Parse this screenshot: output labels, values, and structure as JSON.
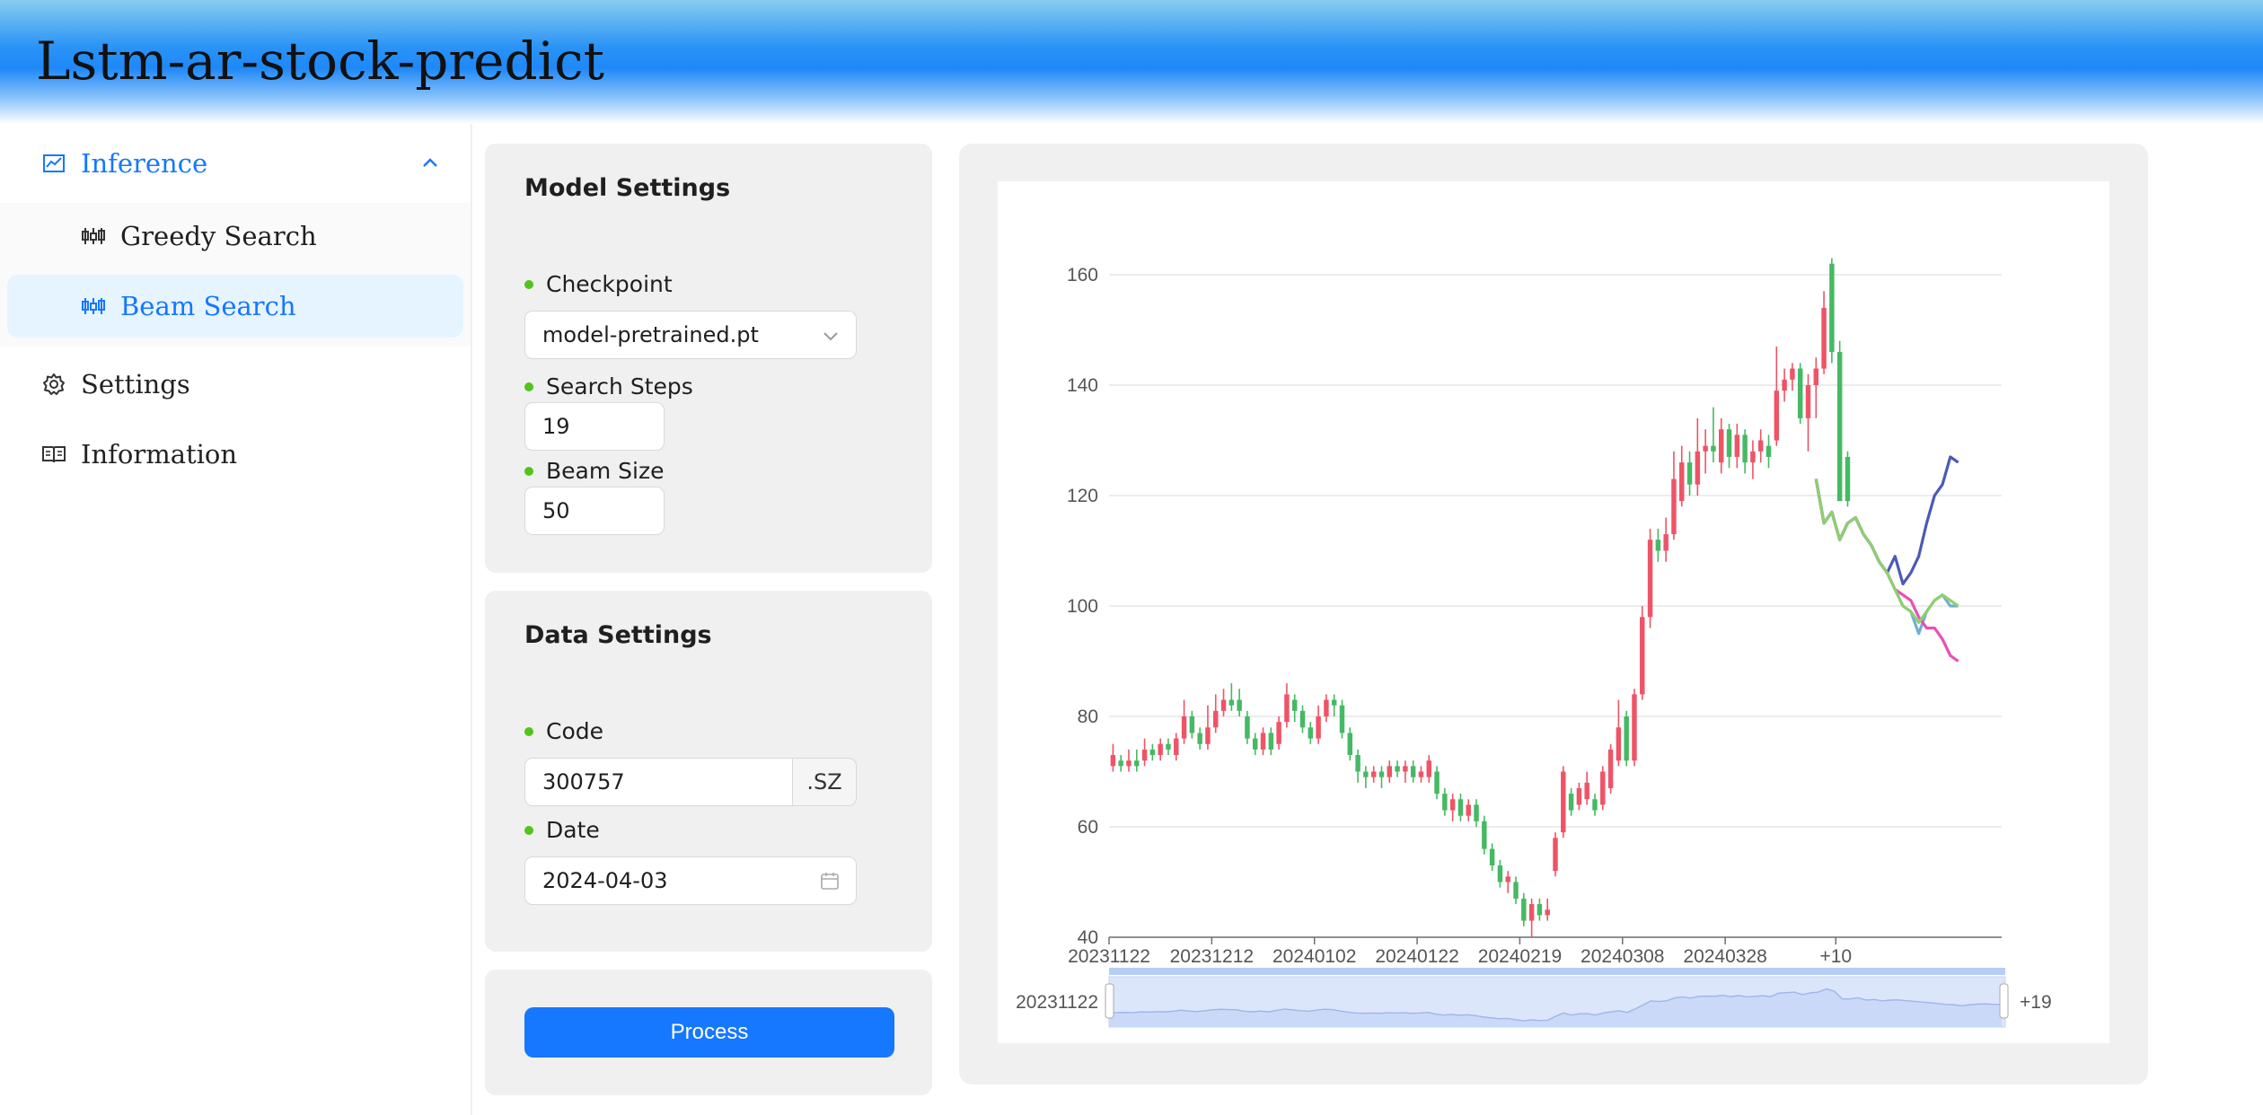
{
  "app": {
    "title": "Lstm-ar-stock-predict"
  },
  "sidebar": {
    "inference": {
      "label": "Inference",
      "icon": "line-chart-icon",
      "expanded": true
    },
    "sub_items": [
      {
        "label": "Greedy Search",
        "icon": "stock-icon",
        "selected": false
      },
      {
        "label": "Beam Search",
        "icon": "stock-icon",
        "selected": true
      }
    ],
    "settings": {
      "label": "Settings",
      "icon": "gear-icon"
    },
    "information": {
      "label": "Information",
      "icon": "book-icon"
    }
  },
  "model_settings": {
    "title": "Model Settings",
    "checkpoint": {
      "label": "Checkpoint",
      "value": "model-pretrained.pt"
    },
    "search_steps": {
      "label": "Search Steps",
      "value": "19"
    },
    "beam_size": {
      "label": "Beam Size",
      "value": "50"
    }
  },
  "data_settings": {
    "title": "Data Settings",
    "code": {
      "label": "Code",
      "value": "300757",
      "suffix": ".SZ"
    },
    "date": {
      "label": "Date",
      "value": "2024-04-03"
    }
  },
  "actions": {
    "process_label": "Process"
  },
  "colors": {
    "accent": "#1677ff",
    "up": "#ee5466",
    "down": "#45b963",
    "status_dot": "#52c41a"
  },
  "chart_data": {
    "type": "candlestick",
    "ylim": [
      40,
      160
    ],
    "yticks": [
      40,
      60,
      80,
      100,
      120,
      140,
      160
    ],
    "xtick_labels": [
      "20231122",
      "20231212",
      "20240102",
      "20240122",
      "20240219",
      "20240308",
      "20240328",
      "+10"
    ],
    "zoom_labels": {
      "start": "20231122",
      "end": "+19"
    },
    "candles": [
      {
        "o": 71,
        "c": 73,
        "h": 75,
        "l": 70
      },
      {
        "o": 72,
        "c": 71,
        "h": 73,
        "l": 70
      },
      {
        "o": 71,
        "c": 72,
        "h": 74,
        "l": 70
      },
      {
        "o": 72,
        "c": 71,
        "h": 74,
        "l": 70
      },
      {
        "o": 72,
        "c": 74,
        "h": 76,
        "l": 71
      },
      {
        "o": 74,
        "c": 73,
        "h": 75,
        "l": 72
      },
      {
        "o": 73,
        "c": 75,
        "h": 76,
        "l": 72
      },
      {
        "o": 75,
        "c": 74,
        "h": 76,
        "l": 73
      },
      {
        "o": 73,
        "c": 76,
        "h": 77,
        "l": 72
      },
      {
        "o": 76,
        "c": 80,
        "h": 83,
        "l": 75
      },
      {
        "o": 80,
        "c": 77,
        "h": 81,
        "l": 76
      },
      {
        "o": 77,
        "c": 75,
        "h": 78,
        "l": 74
      },
      {
        "o": 75,
        "c": 78,
        "h": 82,
        "l": 74
      },
      {
        "o": 78,
        "c": 81,
        "h": 84,
        "l": 77
      },
      {
        "o": 81,
        "c": 83,
        "h": 85,
        "l": 80
      },
      {
        "o": 83,
        "c": 82,
        "h": 86,
        "l": 81
      },
      {
        "o": 83,
        "c": 81,
        "h": 85,
        "l": 80
      },
      {
        "o": 80,
        "c": 76,
        "h": 81,
        "l": 75
      },
      {
        "o": 76,
        "c": 74,
        "h": 77,
        "l": 73
      },
      {
        "o": 74,
        "c": 77,
        "h": 78,
        "l": 73
      },
      {
        "o": 77,
        "c": 74,
        "h": 78,
        "l": 73
      },
      {
        "o": 75,
        "c": 79,
        "h": 80,
        "l": 74
      },
      {
        "o": 79,
        "c": 84,
        "h": 86,
        "l": 78
      },
      {
        "o": 83,
        "c": 81,
        "h": 84,
        "l": 79
      },
      {
        "o": 81,
        "c": 78,
        "h": 82,
        "l": 77
      },
      {
        "o": 78,
        "c": 76,
        "h": 79,
        "l": 75
      },
      {
        "o": 76,
        "c": 80,
        "h": 82,
        "l": 75
      },
      {
        "o": 80,
        "c": 83,
        "h": 84,
        "l": 79
      },
      {
        "o": 83,
        "c": 82,
        "h": 84,
        "l": 80
      },
      {
        "o": 82,
        "c": 77,
        "h": 83,
        "l": 76
      },
      {
        "o": 77,
        "c": 73,
        "h": 78,
        "l": 72
      },
      {
        "o": 73,
        "c": 70,
        "h": 74,
        "l": 68
      },
      {
        "o": 70,
        "c": 69,
        "h": 71,
        "l": 67
      },
      {
        "o": 69,
        "c": 70,
        "h": 71,
        "l": 68
      },
      {
        "o": 70,
        "c": 69,
        "h": 71,
        "l": 67
      },
      {
        "o": 69,
        "c": 71,
        "h": 72,
        "l": 68
      },
      {
        "o": 71,
        "c": 70,
        "h": 72,
        "l": 69
      },
      {
        "o": 70,
        "c": 71,
        "h": 72,
        "l": 68
      },
      {
        "o": 71,
        "c": 69,
        "h": 72,
        "l": 68
      },
      {
        "o": 69,
        "c": 70,
        "h": 71,
        "l": 68
      },
      {
        "o": 69,
        "c": 72,
        "h": 73,
        "l": 68
      },
      {
        "o": 70,
        "c": 66,
        "h": 71,
        "l": 65
      },
      {
        "o": 66,
        "c": 63,
        "h": 67,
        "l": 62
      },
      {
        "o": 63,
        "c": 65,
        "h": 66,
        "l": 61
      },
      {
        "o": 65,
        "c": 62,
        "h": 66,
        "l": 61
      },
      {
        "o": 62,
        "c": 64,
        "h": 65,
        "l": 61
      },
      {
        "o": 64,
        "c": 61,
        "h": 65,
        "l": 60
      },
      {
        "o": 61,
        "c": 56,
        "h": 62,
        "l": 55
      },
      {
        "o": 56,
        "c": 53,
        "h": 57,
        "l": 52
      },
      {
        "o": 53,
        "c": 50,
        "h": 54,
        "l": 49
      },
      {
        "o": 50,
        "c": 51,
        "h": 52,
        "l": 48
      },
      {
        "o": 50,
        "c": 47,
        "h": 51,
        "l": 46
      },
      {
        "o": 47,
        "c": 43,
        "h": 48,
        "l": 42
      },
      {
        "o": 43,
        "c": 46,
        "h": 47,
        "l": 40
      },
      {
        "o": 46,
        "c": 44,
        "h": 47,
        "l": 43
      },
      {
        "o": 44,
        "c": 45,
        "h": 47,
        "l": 43
      },
      {
        "o": 52,
        "c": 58,
        "h": 59,
        "l": 51
      },
      {
        "o": 59,
        "c": 70,
        "h": 71,
        "l": 58
      },
      {
        "o": 66,
        "c": 63,
        "h": 67,
        "l": 62
      },
      {
        "o": 64,
        "c": 67,
        "h": 68,
        "l": 63
      },
      {
        "o": 65,
        "c": 68,
        "h": 70,
        "l": 64
      },
      {
        "o": 65,
        "c": 63,
        "h": 66,
        "l": 62
      },
      {
        "o": 64,
        "c": 70,
        "h": 71,
        "l": 63
      },
      {
        "o": 67,
        "c": 74,
        "h": 75,
        "l": 66
      },
      {
        "o": 72,
        "c": 78,
        "h": 83,
        "l": 71
      },
      {
        "o": 80,
        "c": 72,
        "h": 81,
        "l": 71
      },
      {
        "o": 72,
        "c": 84,
        "h": 85,
        "l": 71
      },
      {
        "o": 84,
        "c": 98,
        "h": 100,
        "l": 83
      },
      {
        "o": 98,
        "c": 112,
        "h": 114,
        "l": 96
      },
      {
        "o": 112,
        "c": 110,
        "h": 114,
        "l": 108
      },
      {
        "o": 110,
        "c": 113,
        "h": 116,
        "l": 108
      },
      {
        "o": 113,
        "c": 123,
        "h": 128,
        "l": 112
      },
      {
        "o": 119,
        "c": 126,
        "h": 129,
        "l": 118
      },
      {
        "o": 126,
        "c": 122,
        "h": 128,
        "l": 120
      },
      {
        "o": 122,
        "c": 128,
        "h": 134,
        "l": 120
      },
      {
        "o": 128,
        "c": 129,
        "h": 132,
        "l": 124
      },
      {
        "o": 129,
        "c": 128,
        "h": 136,
        "l": 126
      },
      {
        "o": 126,
        "c": 132,
        "h": 134,
        "l": 124
      },
      {
        "o": 132,
        "c": 127,
        "h": 133,
        "l": 125
      },
      {
        "o": 127,
        "c": 131,
        "h": 133,
        "l": 125
      },
      {
        "o": 131,
        "c": 126,
        "h": 132,
        "l": 124
      },
      {
        "o": 126,
        "c": 128,
        "h": 130,
        "l": 123
      },
      {
        "o": 128,
        "c": 130,
        "h": 132,
        "l": 126
      },
      {
        "o": 129,
        "c": 127,
        "h": 131,
        "l": 125
      },
      {
        "o": 130,
        "c": 139,
        "h": 147,
        "l": 129
      },
      {
        "o": 139,
        "c": 141,
        "h": 143,
        "l": 137
      },
      {
        "o": 141,
        "c": 143,
        "h": 144,
        "l": 139
      },
      {
        "o": 143,
        "c": 134,
        "h": 144,
        "l": 133
      },
      {
        "o": 134,
        "c": 140,
        "h": 142,
        "l": 128
      },
      {
        "o": 140,
        "c": 143,
        "h": 145,
        "l": 134
      },
      {
        "o": 143,
        "c": 154,
        "h": 157,
        "l": 142
      },
      {
        "o": 162,
        "c": 146,
        "h": 163,
        "l": 144
      },
      {
        "o": 146,
        "c": 119,
        "h": 148,
        "l": 119
      },
      {
        "o": 127,
        "c": 119,
        "h": 128,
        "l": 118
      }
    ],
    "forecast_x_start": 89,
    "paths": [
      {
        "name": "",
        "color": "#71aed3",
        "values": [
          123,
          115,
          117,
          112,
          115,
          116,
          113,
          111,
          108,
          106,
          103,
          100,
          99,
          95,
          99,
          101,
          102,
          100,
          100
        ]
      },
      {
        "name": "",
        "color": "#e94fb8",
        "values": [
          123,
          115,
          117,
          112,
          115,
          116,
          113,
          111,
          108,
          106,
          103,
          102,
          101,
          98,
          96,
          96,
          94,
          91,
          90
        ]
      },
      {
        "name": "",
        "color": "#4b5ab6",
        "values": [
          123,
          115,
          117,
          112,
          115,
          116,
          113,
          111,
          108,
          106,
          109,
          104,
          106,
          109,
          115,
          120,
          122,
          127,
          126
        ]
      },
      {
        "name": "",
        "color": "#8fcf6e",
        "values": [
          123,
          115,
          117,
          112,
          115,
          116,
          113,
          111,
          108,
          106,
          103,
          100,
          99,
          97,
          99,
          101,
          102,
          101,
          100
        ]
      }
    ]
  }
}
